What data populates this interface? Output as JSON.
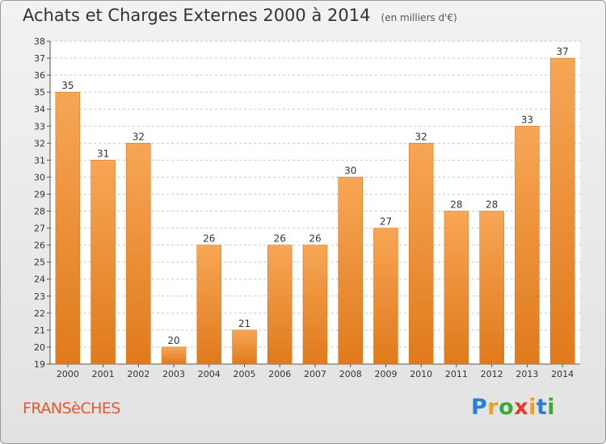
{
  "header": {
    "title": "Achats et Charges Externes 2000 à 2014",
    "unit": "(en milliers d'€)"
  },
  "footer": {
    "place": "FRANSèCHES",
    "brand_letters": [
      "P",
      "r",
      "o",
      "x",
      "i",
      "t",
      "i"
    ],
    "brand_colors": [
      "#2a7fd4",
      "#f0a020",
      "#3aaa35",
      "#e23a24",
      "#f0a020",
      "#2a7fd4",
      "#3aaa35"
    ]
  },
  "chart_data": {
    "type": "bar",
    "title": "Achats et Charges Externes 2000 à 2014",
    "subtitle": "(en milliers d'€)",
    "categories": [
      "2000",
      "2001",
      "2002",
      "2003",
      "2004",
      "2005",
      "2006",
      "2007",
      "2008",
      "2009",
      "2010",
      "2011",
      "2012",
      "2013",
      "2014"
    ],
    "values": [
      35,
      31,
      32,
      20,
      26,
      21,
      26,
      26,
      30,
      27,
      32,
      28,
      28,
      33,
      37
    ],
    "ylim": [
      19,
      38
    ],
    "yticks": [
      19,
      20,
      21,
      22,
      23,
      24,
      25,
      26,
      27,
      28,
      29,
      30,
      31,
      32,
      33,
      34,
      35,
      36,
      37,
      38
    ],
    "grid": true,
    "colors": {
      "bar_top": "#f7a655",
      "bar_bottom": "#e07a1c",
      "grid": "#c8c8c8",
      "plot_bg": "#ffffff"
    }
  }
}
